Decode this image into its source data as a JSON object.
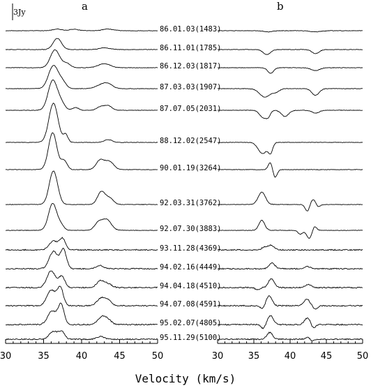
{
  "chart_data": {
    "type": "line",
    "xlabel": "Velocity (km/s)",
    "xlim": [
      30,
      50
    ],
    "xticks": [
      "30",
      "35",
      "40",
      "45",
      "50"
    ],
    "scale_bar": "3Jy",
    "panels": [
      {
        "label": "a"
      },
      {
        "label": "b"
      }
    ],
    "epochs": [
      "86.01.03(1483)",
      "86.11.01(1785)",
      "86.12.03(1817)",
      "87.03.03(1907)",
      "87.07.05(2031)",
      "88.12.02(2547)",
      "90.01.19(3264)",
      "92.03.31(3762)",
      "92.07.30(3883)",
      "93.11.28(4369)",
      "94.02.16(4449)",
      "94.04.18(4510)",
      "94.07.08(4591)",
      "95.02.07(4805)",
      "95.11.29(5100)"
    ],
    "series": [
      {
        "epoch": "86.01.03(1483)",
        "a": [
          [
            36.8,
            0.3,
            0.6
          ],
          [
            39.0,
            0.25,
            0.6
          ],
          [
            43.5,
            0.3,
            0.7
          ]
        ],
        "b": [
          [
            37.0,
            -0.2,
            0.6
          ],
          [
            43.5,
            -0.2,
            0.7
          ]
        ]
      },
      {
        "epoch": "86.11.01(1785)",
        "a": [
          [
            36.8,
            2.0,
            0.55
          ],
          [
            43.0,
            0.3,
            0.7
          ]
        ],
        "b": [
          [
            36.8,
            -0.9,
            0.5
          ],
          [
            43.5,
            -0.7,
            0.5
          ]
        ]
      },
      {
        "epoch": "86.12.03(1817)",
        "a": [
          [
            36.5,
            3.2,
            0.6
          ],
          [
            38.0,
            0.8,
            0.5
          ],
          [
            43.0,
            0.7,
            0.8
          ]
        ],
        "b": [
          [
            37.3,
            -1.0,
            0.4
          ],
          [
            43.5,
            -0.5,
            0.6
          ]
        ]
      },
      {
        "epoch": "87.03.03(1907)",
        "a": [
          [
            36.3,
            4.1,
            0.65
          ],
          [
            37.5,
            1.0,
            0.5
          ],
          [
            42.5,
            0.6,
            0.7
          ],
          [
            43.5,
            0.8,
            0.6
          ]
        ],
        "b": [
          [
            36.5,
            -1.5,
            0.7
          ],
          [
            38.0,
            -0.6,
            0.5
          ],
          [
            43.5,
            -1.2,
            0.5
          ]
        ]
      },
      {
        "epoch": "87.07.05(2031)",
        "a": [
          [
            36.2,
            5.3,
            0.6
          ],
          [
            37.3,
            1.2,
            0.5
          ],
          [
            39.2,
            0.5,
            0.4
          ],
          [
            42.5,
            0.6,
            0.5
          ],
          [
            43.5,
            0.8,
            0.5
          ]
        ],
        "b": [
          [
            36.3,
            -1.3,
            0.5
          ],
          [
            37.0,
            -0.9,
            0.3
          ],
          [
            39.3,
            -1.1,
            0.5
          ],
          [
            43.5,
            -0.5,
            0.5
          ]
        ]
      },
      {
        "epoch": "88.12.02(2547)",
        "a": [
          [
            36.3,
            7.0,
            0.6
          ],
          [
            37.9,
            1.4,
            0.3
          ],
          [
            43.5,
            0.5,
            0.5
          ]
        ],
        "b": [
          [
            36.2,
            -2.0,
            0.6
          ],
          [
            37.3,
            -1.7,
            0.3
          ]
        ]
      },
      {
        "epoch": "90.01.19(3264)",
        "a": [
          [
            36.2,
            6.6,
            0.55
          ],
          [
            37.7,
            1.6,
            0.4
          ],
          [
            42.4,
            1.6,
            0.5
          ],
          [
            43.6,
            1.5,
            0.6
          ]
        ],
        "b": [
          [
            37.3,
            1.4,
            0.3
          ],
          [
            37.9,
            -1.5,
            0.3
          ]
        ]
      },
      {
        "epoch": "92.03.31(3762)",
        "a": [
          [
            36.3,
            6.0,
            0.55
          ],
          [
            42.6,
            2.3,
            0.5
          ],
          [
            43.7,
            1.1,
            0.5
          ]
        ],
        "b": [
          [
            36.1,
            2.2,
            0.5
          ],
          [
            42.4,
            -1.3,
            0.3
          ],
          [
            43.2,
            1.0,
            0.4
          ],
          [
            43.8,
            -0.6,
            0.3
          ]
        ]
      },
      {
        "epoch": "92.07.30(3883)",
        "a": [
          [
            36.2,
            4.8,
            0.55
          ],
          [
            37.3,
            0.8,
            0.4
          ],
          [
            42.2,
            1.3,
            0.5
          ],
          [
            43.3,
            1.9,
            0.6
          ]
        ],
        "b": [
          [
            36.1,
            1.8,
            0.4
          ],
          [
            41.4,
            -0.7,
            0.3
          ],
          [
            42.7,
            -1.5,
            0.4
          ],
          [
            43.3,
            1.0,
            0.3
          ]
        ]
      },
      {
        "epoch": "93.11.28(4369)",
        "a": [
          [
            36.3,
            1.6,
            0.55
          ],
          [
            37.5,
            2.0,
            0.4
          ]
        ],
        "b": [
          [
            36.5,
            0.5,
            0.4
          ],
          [
            37.4,
            0.8,
            0.4
          ]
        ]
      },
      {
        "epoch": "94.02.16(4449)",
        "a": [
          [
            36.3,
            3.1,
            0.55
          ],
          [
            37.6,
            3.4,
            0.4
          ],
          [
            42.4,
            0.6,
            0.5
          ]
        ],
        "b": [
          [
            37.5,
            1.0,
            0.4
          ],
          [
            42.4,
            0.4,
            0.4
          ]
        ]
      },
      {
        "epoch": "94.04.18(4510)",
        "a": [
          [
            36.0,
            3.0,
            0.55
          ],
          [
            37.4,
            2.0,
            0.4
          ],
          [
            42.5,
            1.2,
            0.5
          ],
          [
            43.5,
            0.6,
            0.5
          ]
        ],
        "b": [
          [
            37.4,
            1.6,
            0.4
          ],
          [
            42.5,
            0.6,
            0.4
          ],
          [
            35.5,
            -0.4,
            0.3
          ]
        ]
      },
      {
        "epoch": "94.07.08(4591)",
        "a": [
          [
            36.0,
            2.8,
            0.55
          ],
          [
            37.2,
            3.2,
            0.4
          ],
          [
            42.5,
            1.2,
            0.5
          ],
          [
            43.4,
            1.0,
            0.5
          ]
        ],
        "b": [
          [
            37.1,
            1.8,
            0.4
          ],
          [
            36.2,
            -0.6,
            0.3
          ],
          [
            42.3,
            1.2,
            0.4
          ],
          [
            43.5,
            -0.6,
            0.3
          ]
        ]
      },
      {
        "epoch": "95.02.07(4805)",
        "a": [
          [
            36.1,
            2.4,
            0.55
          ],
          [
            37.3,
            3.6,
            0.4
          ],
          [
            42.6,
            1.2,
            0.5
          ],
          [
            43.4,
            0.9,
            0.5
          ]
        ],
        "b": [
          [
            37.3,
            1.6,
            0.4
          ],
          [
            36.3,
            -0.7,
            0.3
          ],
          [
            42.4,
            1.2,
            0.4
          ],
          [
            43.2,
            -0.7,
            0.3
          ]
        ]
      },
      {
        "epoch": "95.11.29(5100)",
        "a": [
          [
            36.3,
            1.4,
            0.55
          ],
          [
            37.4,
            1.3,
            0.4
          ],
          [
            42.5,
            0.5,
            0.5
          ]
        ],
        "b": [
          [
            37.2,
            1.2,
            0.4
          ],
          [
            42.6,
            0.4,
            0.4
          ],
          [
            43.0,
            -0.5,
            0.3
          ]
        ]
      }
    ]
  }
}
